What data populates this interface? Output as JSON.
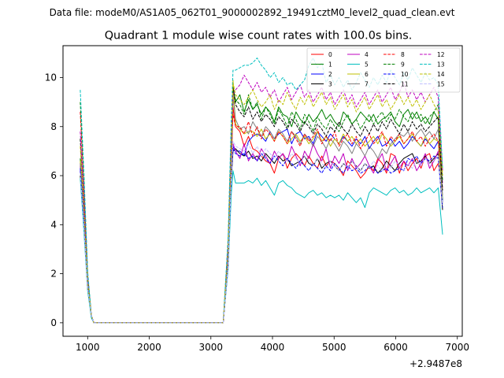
{
  "chart_data": {
    "type": "line",
    "suptitle": "Data file: modeM0/AS1A05_062T01_9000002892_19491cztM0_level2_quad_clean.evt",
    "title": "Quadrant 1 module wise count rates with 100.0s bins.",
    "xlabel": "",
    "ylabel": "",
    "x_offset_label": "+2.9487e8",
    "xlim": [
      600,
      7080
    ],
    "ylim": [
      -0.55,
      11.3
    ],
    "xticks": [
      1000,
      2000,
      3000,
      4000,
      5000,
      6000,
      7000
    ],
    "yticks": [
      0,
      2,
      4,
      6,
      8,
      10
    ],
    "grid": false,
    "legend": {
      "placement": "top-right",
      "columns": 4
    },
    "x": [
      880,
      940,
      1000,
      1060,
      1100,
      3200,
      3280,
      3330,
      3360,
      3400,
      3470,
      3540,
      3610,
      3680,
      3750,
      3820,
      3890,
      3960,
      4030,
      4100,
      4170,
      4240,
      4310,
      4380,
      4450,
      4520,
      4590,
      4660,
      4730,
      4800,
      4870,
      4940,
      5010,
      5080,
      5150,
      5220,
      5290,
      5360,
      5430,
      5500,
      5570,
      5640,
      5710,
      5780,
      5850,
      5920,
      5990,
      6060,
      6130,
      6200,
      6270,
      6340,
      6410,
      6480,
      6550,
      6620,
      6690,
      6760
    ],
    "series": [
      {
        "name": "0",
        "color": "#ff0000",
        "dash": "solid",
        "values": [
          6.5,
          4.2,
          1.5,
          0.3,
          0,
          0,
          2.5,
          6.0,
          8.8,
          8.0,
          7.8,
          7.2,
          7.6,
          7.1,
          7.0,
          6.8,
          6.6,
          6.5,
          6.1,
          6.7,
          6.9,
          6.3,
          6.7,
          6.9,
          6.7,
          6.4,
          6.8,
          6.5,
          6.3,
          6.8,
          6.4,
          6.6,
          6.5,
          6.3,
          6.0,
          6.6,
          6.4,
          6.2,
          5.9,
          6.1,
          6.4,
          6.2,
          6.7,
          6.5,
          6.1,
          6.9,
          6.8,
          6.1,
          6.6,
          6.2,
          6.5,
          6.7,
          6.3,
          6.8,
          6.9,
          6.2,
          6.5,
          5.5
        ]
      },
      {
        "name": "1",
        "color": "#008000",
        "dash": "solid",
        "values": [
          6.7,
          4.5,
          1.6,
          0.3,
          0,
          0,
          2.8,
          6.5,
          9.7,
          9.0,
          9.3,
          8.6,
          9.1,
          8.7,
          8.9,
          8.5,
          8.8,
          8.6,
          8.2,
          8.8,
          8.5,
          8.4,
          8.0,
          8.6,
          8.3,
          8.1,
          8.5,
          8.2,
          8.4,
          8.7,
          8.3,
          8.5,
          8.2,
          8.0,
          8.6,
          8.4,
          8.1,
          8.3,
          8.6,
          8.4,
          8.2,
          8.5,
          8.1,
          8.3,
          8.4,
          8.6,
          8.2,
          8.0,
          8.5,
          8.7,
          8.3,
          8.6,
          8.2,
          8.4,
          8.1,
          8.6,
          8.3,
          5.0
        ]
      },
      {
        "name": "2",
        "color": "#0000ff",
        "dash": "solid",
        "values": [
          6.2,
          4.0,
          1.4,
          0.3,
          0,
          0,
          2.4,
          6.0,
          7.2,
          7.0,
          7.0,
          6.8,
          7.4,
          7.6,
          7.7,
          7.6,
          7.4,
          7.8,
          7.5,
          7.7,
          7.8,
          7.9,
          7.3,
          7.7,
          7.8,
          7.5,
          7.6,
          7.3,
          7.8,
          7.6,
          7.4,
          7.7,
          7.5,
          7.3,
          7.6,
          7.4,
          7.2,
          7.5,
          7.3,
          7.6,
          7.1,
          7.4,
          7.6,
          7.2,
          7.3,
          7.5,
          7.2,
          7.4,
          7.1,
          7.3,
          7.6,
          7.4,
          7.2,
          7.5,
          7.3,
          7.1,
          7.4,
          4.9
        ]
      },
      {
        "name": "3",
        "color": "#000000",
        "dash": "solid",
        "values": [
          6.0,
          3.9,
          1.4,
          0.3,
          0,
          0,
          2.3,
          5.8,
          7.0,
          7.1,
          6.9,
          6.8,
          7.0,
          6.7,
          6.8,
          6.6,
          6.9,
          6.7,
          6.5,
          6.8,
          6.6,
          6.7,
          6.4,
          6.5,
          6.6,
          6.8,
          6.5,
          6.4,
          6.7,
          6.3,
          6.5,
          6.6,
          6.4,
          6.2,
          6.5,
          6.3,
          6.6,
          6.4,
          6.2,
          6.5,
          6.3,
          6.4,
          6.1,
          6.3,
          6.6,
          6.4,
          6.2,
          6.5,
          6.7,
          6.8,
          6.9,
          6.5,
          6.6,
          6.8,
          6.5,
          6.7,
          6.9,
          4.6
        ]
      },
      {
        "name": "4",
        "color": "#bf00bf",
        "dash": "solid",
        "values": [
          6.4,
          4.1,
          1.5,
          0.3,
          0,
          0,
          2.4,
          6.1,
          7.3,
          7.0,
          6.7,
          7.3,
          6.6,
          6.9,
          6.6,
          7.1,
          6.8,
          6.5,
          7.0,
          6.7,
          6.9,
          6.6,
          7.2,
          6.8,
          6.4,
          7.0,
          6.7,
          7.3,
          6.9,
          6.6,
          7.1,
          6.3,
          6.8,
          6.5,
          6.9,
          6.2,
          6.7,
          6.3,
          6.5,
          6.8,
          6.4,
          6.1,
          6.6,
          6.9,
          6.2,
          6.5,
          6.8,
          6.3,
          6.6,
          6.4,
          6.7,
          6.2,
          6.5,
          6.9,
          6.3,
          6.6,
          7.0,
          5.7
        ]
      },
      {
        "name": "5",
        "color": "#00bfbf",
        "dash": "solid",
        "values": [
          5.9,
          3.7,
          1.3,
          0.2,
          0,
          0,
          2.2,
          5.2,
          6.2,
          5.7,
          5.7,
          5.7,
          5.8,
          5.7,
          5.9,
          5.6,
          5.8,
          5.5,
          5.2,
          5.7,
          5.8,
          5.6,
          5.5,
          5.3,
          5.2,
          5.1,
          5.3,
          5.4,
          5.2,
          5.3,
          5.1,
          5.2,
          5.1,
          5.2,
          5.0,
          5.3,
          5.1,
          4.9,
          5.1,
          4.7,
          5.3,
          5.5,
          5.4,
          5.3,
          5.2,
          5.4,
          5.5,
          5.3,
          5.4,
          5.2,
          5.3,
          5.5,
          5.3,
          5.4,
          5.5,
          5.3,
          5.5,
          3.6
        ]
      },
      {
        "name": "6",
        "color": "#bfbf00",
        "dash": "solid",
        "values": [
          6.6,
          4.3,
          1.5,
          0.3,
          0,
          0,
          2.6,
          6.3,
          9.9,
          8.1,
          7.9,
          7.7,
          7.8,
          7.8,
          7.6,
          7.9,
          7.5,
          7.7,
          7.4,
          7.8,
          7.6,
          7.3,
          7.5,
          7.7,
          7.4,
          7.6,
          7.3,
          7.5,
          7.8,
          7.4,
          7.6,
          7.2,
          7.5,
          7.3,
          7.7,
          7.4,
          7.6,
          7.3,
          7.5,
          7.2,
          7.4,
          7.6,
          7.3,
          7.7,
          7.5,
          7.2,
          7.4,
          7.6,
          7.3,
          7.5,
          7.7,
          7.4,
          7.2,
          7.6,
          7.3,
          7.5,
          7.4,
          4.8
        ]
      },
      {
        "name": "7",
        "color": "#808080",
        "dash": "solid",
        "values": [
          6.5,
          4.2,
          1.5,
          0.3,
          0,
          0,
          2.5,
          6.2,
          9.2,
          8.3,
          7.9,
          8.0,
          7.7,
          8.2,
          7.9,
          7.6,
          8.0,
          7.8,
          7.5,
          7.9,
          7.7,
          7.4,
          7.8,
          7.6,
          7.3,
          7.7,
          7.5,
          7.2,
          7.6,
          7.4,
          7.1,
          7.5,
          7.3,
          7.0,
          7.4,
          7.2,
          6.9,
          7.3,
          7.1,
          6.8,
          7.2,
          7.0,
          6.7,
          7.1,
          6.9,
          7.3,
          7.5,
          7.7,
          7.6,
          7.8,
          7.4,
          7.7,
          7.9,
          7.6,
          7.8,
          7.5,
          7.9,
          5.2
        ]
      },
      {
        "name": "8",
        "color": "#ff0000",
        "dash": "dashed",
        "values": [
          8.6,
          5.5,
          1.9,
          0.3,
          0,
          0,
          3.2,
          7.5,
          8.5,
          8.0,
          8.0,
          7.7,
          8.2,
          7.6,
          8.0,
          7.5,
          7.9,
          7.7,
          7.4,
          7.8,
          7.6,
          7.3,
          7.8,
          7.5,
          7.2,
          7.7,
          7.4,
          7.6,
          7.9,
          7.3,
          7.6,
          7.4,
          7.8,
          7.2,
          7.5,
          7.7,
          7.3,
          7.6,
          7.1,
          7.4,
          7.7,
          7.3,
          7.5,
          7.8,
          7.2,
          7.6,
          7.4,
          7.7,
          7.3,
          7.5,
          7.8,
          7.4,
          7.6,
          7.2,
          7.5,
          7.7,
          7.4,
          6.0
        ]
      },
      {
        "name": "9",
        "color": "#008000",
        "dash": "dashed",
        "values": [
          9.0,
          5.8,
          2.0,
          0.3,
          0,
          0,
          3.3,
          7.8,
          9.5,
          9.1,
          8.9,
          8.5,
          9.3,
          8.7,
          9.0,
          8.3,
          8.8,
          8.5,
          8.1,
          8.7,
          8.4,
          8.0,
          8.6,
          8.3,
          7.9,
          8.5,
          8.2,
          7.8,
          8.4,
          8.1,
          7.9,
          8.3,
          8.0,
          7.8,
          8.2,
          8.5,
          8.1,
          8.3,
          7.9,
          8.2,
          8.5,
          8.1,
          8.4,
          8.6,
          8.2,
          8.5,
          8.3,
          8.7,
          8.4,
          8.2,
          8.6,
          8.3,
          8.5,
          8.1,
          8.4,
          8.6,
          8.9,
          5.8
        ]
      },
      {
        "name": "10",
        "color": "#0000ff",
        "dash": "dashed",
        "values": [
          6.3,
          4.1,
          1.5,
          0.3,
          0,
          0,
          2.4,
          6.0,
          7.1,
          6.9,
          6.8,
          6.9,
          6.7,
          6.8,
          6.6,
          6.9,
          6.7,
          6.5,
          6.8,
          6.6,
          6.4,
          6.7,
          6.5,
          6.3,
          6.6,
          6.4,
          6.2,
          6.5,
          6.3,
          6.1,
          6.4,
          6.2,
          6.5,
          6.3,
          6.1,
          6.4,
          6.2,
          6.3,
          6.1,
          6.2,
          6.4,
          6.3,
          6.1,
          6.2,
          6.3,
          6.1,
          6.2,
          6.3,
          6.2,
          6.7,
          6.6,
          6.8,
          6.5,
          6.7,
          6.6,
          6.8,
          6.7,
          4.7
        ]
      },
      {
        "name": "11",
        "color": "#000000",
        "dash": "dashed",
        "values": [
          7.5,
          4.8,
          1.7,
          0.3,
          0,
          0,
          2.9,
          6.9,
          9.6,
          8.9,
          8.6,
          8.4,
          8.8,
          8.3,
          8.6,
          8.2,
          8.5,
          8.3,
          8.0,
          8.4,
          8.2,
          7.9,
          8.3,
          8.1,
          7.8,
          8.2,
          8.0,
          7.7,
          8.1,
          7.9,
          7.6,
          8.0,
          7.8,
          8.2,
          7.9,
          7.7,
          8.1,
          7.8,
          7.6,
          8.0,
          7.7,
          8.1,
          7.8,
          8.2,
          7.9,
          8.3,
          8.0,
          7.7,
          8.1,
          7.8,
          8.2,
          7.9,
          8.1,
          7.8,
          8.0,
          8.2,
          8.4,
          5.4
        ]
      },
      {
        "name": "12",
        "color": "#bf00bf",
        "dash": "dashed",
        "values": [
          7.8,
          5.0,
          1.8,
          0.3,
          0,
          0,
          3.0,
          7.2,
          9.3,
          9.5,
          9.7,
          10.1,
          9.8,
          9.5,
          9.8,
          9.4,
          9.6,
          9.2,
          9.5,
          9.0,
          9.3,
          9.6,
          9.1,
          9.4,
          9.7,
          9.2,
          9.5,
          9.0,
          9.3,
          9.6,
          9.1,
          9.4,
          8.9,
          9.2,
          9.5,
          9.0,
          9.3,
          8.8,
          9.1,
          9.4,
          8.9,
          9.2,
          9.5,
          9.0,
          9.3,
          9.6,
          9.1,
          9.4,
          9.8,
          9.2,
          9.5,
          9.1,
          9.4,
          9.0,
          9.3,
          9.6,
          9.2,
          6.2
        ]
      },
      {
        "name": "13",
        "color": "#00bfbf",
        "dash": "dashed",
        "values": [
          9.5,
          6.1,
          2.1,
          0.3,
          0,
          0,
          3.5,
          8.2,
          10.3,
          10.3,
          10.4,
          10.5,
          10.5,
          10.6,
          10.8,
          10.5,
          10.3,
          10.0,
          10.2,
          9.8,
          10.0,
          9.7,
          9.8,
          9.5,
          9.7,
          9.9,
          10.5,
          10.8,
          10.4,
          10.6,
          9.8,
          10.1,
          9.7,
          10.0,
          9.6,
          9.9,
          9.5,
          9.8,
          10.2,
          9.9,
          9.6,
          10.0,
          9.7,
          10.1,
          9.8,
          10.3,
          10.0,
          9.7,
          10.2,
          9.9,
          10.4,
          10.1,
          9.8,
          10.2,
          9.9,
          10.0,
          9.7,
          6.3
        ]
      },
      {
        "name": "14",
        "color": "#bfbf00",
        "dash": "dashed",
        "values": [
          7.2,
          4.6,
          1.6,
          0.3,
          0,
          0,
          2.8,
          6.8,
          9.8,
          9.3,
          9.1,
          8.9,
          9.2,
          9.5,
          9.1,
          8.8,
          9.0,
          9.3,
          8.7,
          9.1,
          8.9,
          9.4,
          9.0,
          8.7,
          9.2,
          8.9,
          9.3,
          8.8,
          9.1,
          9.4,
          8.9,
          9.2,
          8.7,
          9.0,
          9.3,
          8.8,
          9.1,
          8.6,
          8.9,
          9.2,
          8.7,
          9.0,
          9.3,
          8.8,
          9.1,
          8.7,
          9.0,
          9.3,
          8.9,
          9.2,
          8.8,
          9.1,
          8.7,
          9.0,
          9.3,
          8.9,
          8.6,
          6.0
        ]
      },
      {
        "name": "15",
        "color": "#bfbfff",
        "dash": "dashed",
        "values": [
          6.1,
          3.9,
          1.4,
          0.3,
          0,
          0,
          2.3,
          5.9,
          7.4,
          7.2,
          7.1,
          7.0,
          7.3,
          6.9,
          7.2,
          6.8,
          7.1,
          6.9,
          6.7,
          7.0,
          6.8,
          6.6,
          6.9,
          6.7,
          6.5,
          6.8,
          6.6,
          6.4,
          6.7,
          6.5,
          6.3,
          6.6,
          6.4,
          6.2,
          6.5,
          6.3,
          6.6,
          6.4,
          6.2,
          6.5,
          6.3,
          6.6,
          6.4,
          6.2,
          6.5,
          6.3,
          6.6,
          6.4,
          6.2,
          6.5,
          6.3,
          6.6,
          6.4,
          6.7,
          6.5,
          6.6,
          6.8,
          4.8
        ]
      }
    ]
  }
}
